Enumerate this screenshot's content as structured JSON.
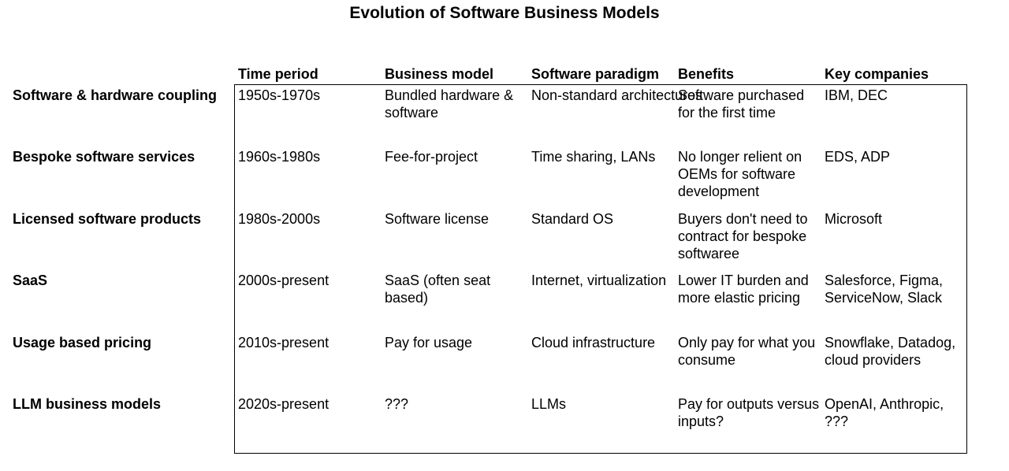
{
  "title": "Evolution of Software Business Models",
  "columns": [
    "Time period",
    "Business model",
    "Software paradigm",
    "Benefits",
    "Key companies"
  ],
  "rows": [
    {
      "label": "Software & hardware coupling",
      "cells": [
        "1950s-1970s",
        "Bundled hardware & software",
        "Non-standard architectures",
        "Software purchased for the first time",
        "IBM, DEC"
      ]
    },
    {
      "label": "Bespoke software services",
      "cells": [
        "1960s-1980s",
        "Fee-for-project",
        "Time sharing, LANs",
        "No longer relient on OEMs for software development",
        "EDS, ADP"
      ]
    },
    {
      "label": "Licensed software products",
      "cells": [
        "1980s-2000s",
        "Software license",
        "Standard OS",
        "Buyers don't need to contract for bespoke softwaree",
        "Microsoft"
      ]
    },
    {
      "label": "SaaS",
      "cells": [
        "2000s-present",
        "SaaS (often seat based)",
        "Internet, virtualization",
        "Lower IT burden and more elastic pricing",
        "Salesforce, Figma, ServiceNow, Slack"
      ]
    },
    {
      "label": "Usage based pricing",
      "cells": [
        "2010s-present",
        "Pay for usage",
        "Cloud infrastructure",
        "Only pay for what you consume",
        "Snowflake, Datadog, cloud providers"
      ]
    },
    {
      "label": "LLM business models",
      "cells": [
        "2020s-present",
        "???",
        "LLMs",
        "Pay for outputs versus inputs?",
        "OpenAI, Anthropic, ???"
      ]
    }
  ]
}
